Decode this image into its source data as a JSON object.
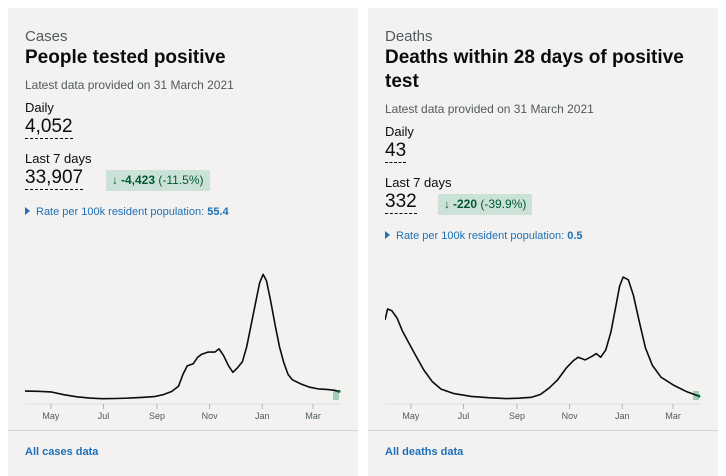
{
  "cases": {
    "caption": "Cases",
    "title": "People tested positive",
    "updated": "Latest data provided on 31 March 2021",
    "daily_label": "Daily",
    "daily_value": "4,052",
    "week_label": "Last 7 days",
    "week_value": "33,907",
    "change": {
      "arrow": "↓",
      "absolute": "-4,423",
      "percent": "(-11.5%)"
    },
    "rate_label": "Rate per 100k resident population:",
    "rate_value": "55.4",
    "footer_link": "All cases data"
  },
  "deaths": {
    "caption": "Deaths",
    "title": "Deaths within 28 days of positive test",
    "updated": "Latest data provided on 31 March 2021",
    "daily_label": "Daily",
    "daily_value": "43",
    "week_label": "Last 7 days",
    "week_value": "332",
    "change": {
      "arrow": "↓",
      "absolute": "-220",
      "percent": "(-39.9%)"
    },
    "rate_label": "Rate per 100k resident population:",
    "rate_value": "0.5",
    "footer_link": "All deaths data"
  },
  "colors": {
    "card_bg": "#f3f2f1",
    "line": "#0b0c0c",
    "link": "#1d70b8",
    "badge_bg": "#cce2d8",
    "badge_text": "#005a30",
    "recent_fill": "#a3cbb7"
  },
  "chart_data": [
    {
      "type": "line",
      "title": "",
      "x_start": "2020-04-01",
      "x_end": "2021-03-31",
      "x_ticks": [
        "May",
        "Jul",
        "Sep",
        "Nov",
        "Jan",
        "Mar"
      ],
      "ylim": [
        0,
        62000
      ],
      "series": [
        {
          "values": [
            [
              0,
              4200
            ],
            [
              15,
              4100
            ],
            [
              30,
              3800
            ],
            [
              45,
              2500
            ],
            [
              60,
              1500
            ],
            [
              75,
              900
            ],
            [
              90,
              600
            ],
            [
              105,
              700
            ],
            [
              120,
              900
            ],
            [
              135,
              1200
            ],
            [
              150,
              1600
            ],
            [
              160,
              2500
            ],
            [
              170,
              4000
            ],
            [
              178,
              6500
            ],
            [
              183,
              12000
            ],
            [
              188,
              16000
            ],
            [
              195,
              17000
            ],
            [
              200,
              20000
            ],
            [
              205,
              21500
            ],
            [
              212,
              22500
            ],
            [
              220,
              22500
            ],
            [
              225,
              24000
            ],
            [
              230,
              21000
            ],
            [
              236,
              16000
            ],
            [
              241,
              13000
            ],
            [
              246,
              15000
            ],
            [
              252,
              18000
            ],
            [
              257,
              25000
            ],
            [
              262,
              35000
            ],
            [
              267,
              45000
            ],
            [
              272,
              55000
            ],
            [
              276,
              59000
            ],
            [
              280,
              56000
            ],
            [
              285,
              46000
            ],
            [
              290,
              35000
            ],
            [
              295,
              25000
            ],
            [
              300,
              17500
            ],
            [
              305,
              12000
            ],
            [
              310,
              9500
            ],
            [
              320,
              7500
            ],
            [
              330,
              6000
            ],
            [
              340,
              5200
            ],
            [
              350,
              5000
            ],
            [
              358,
              4600
            ],
            [
              364,
              4052
            ]
          ]
        }
      ],
      "grid": false
    },
    {
      "type": "line",
      "title": "",
      "x_start": "2020-04-01",
      "x_end": "2021-03-31",
      "x_ticks": [
        "May",
        "Jul",
        "Sep",
        "Nov",
        "Jan",
        "Mar"
      ],
      "ylim": [
        0,
        1450
      ],
      "series": [
        {
          "values": [
            [
              0,
              880
            ],
            [
              3,
              1000
            ],
            [
              8,
              980
            ],
            [
              14,
              900
            ],
            [
              20,
              760
            ],
            [
              28,
              620
            ],
            [
              36,
              480
            ],
            [
              45,
              330
            ],
            [
              55,
              200
            ],
            [
              65,
              120
            ],
            [
              80,
              70
            ],
            [
              100,
              40
            ],
            [
              120,
              25
            ],
            [
              140,
              15
            ],
            [
              155,
              20
            ],
            [
              170,
              30
            ],
            [
              180,
              60
            ],
            [
              190,
              130
            ],
            [
              200,
              220
            ],
            [
              210,
              350
            ],
            [
              218,
              430
            ],
            [
              224,
              470
            ],
            [
              232,
              440
            ],
            [
              240,
              480
            ],
            [
              245,
              510
            ],
            [
              250,
              470
            ],
            [
              256,
              550
            ],
            [
              262,
              750
            ],
            [
              268,
              1050
            ],
            [
              272,
              1250
            ],
            [
              276,
              1350
            ],
            [
              282,
              1320
            ],
            [
              288,
              1150
            ],
            [
              295,
              850
            ],
            [
              302,
              570
            ],
            [
              310,
              380
            ],
            [
              320,
              250
            ],
            [
              335,
              160
            ],
            [
              350,
              90
            ],
            [
              364,
              43
            ]
          ]
        }
      ],
      "grid": false
    }
  ]
}
